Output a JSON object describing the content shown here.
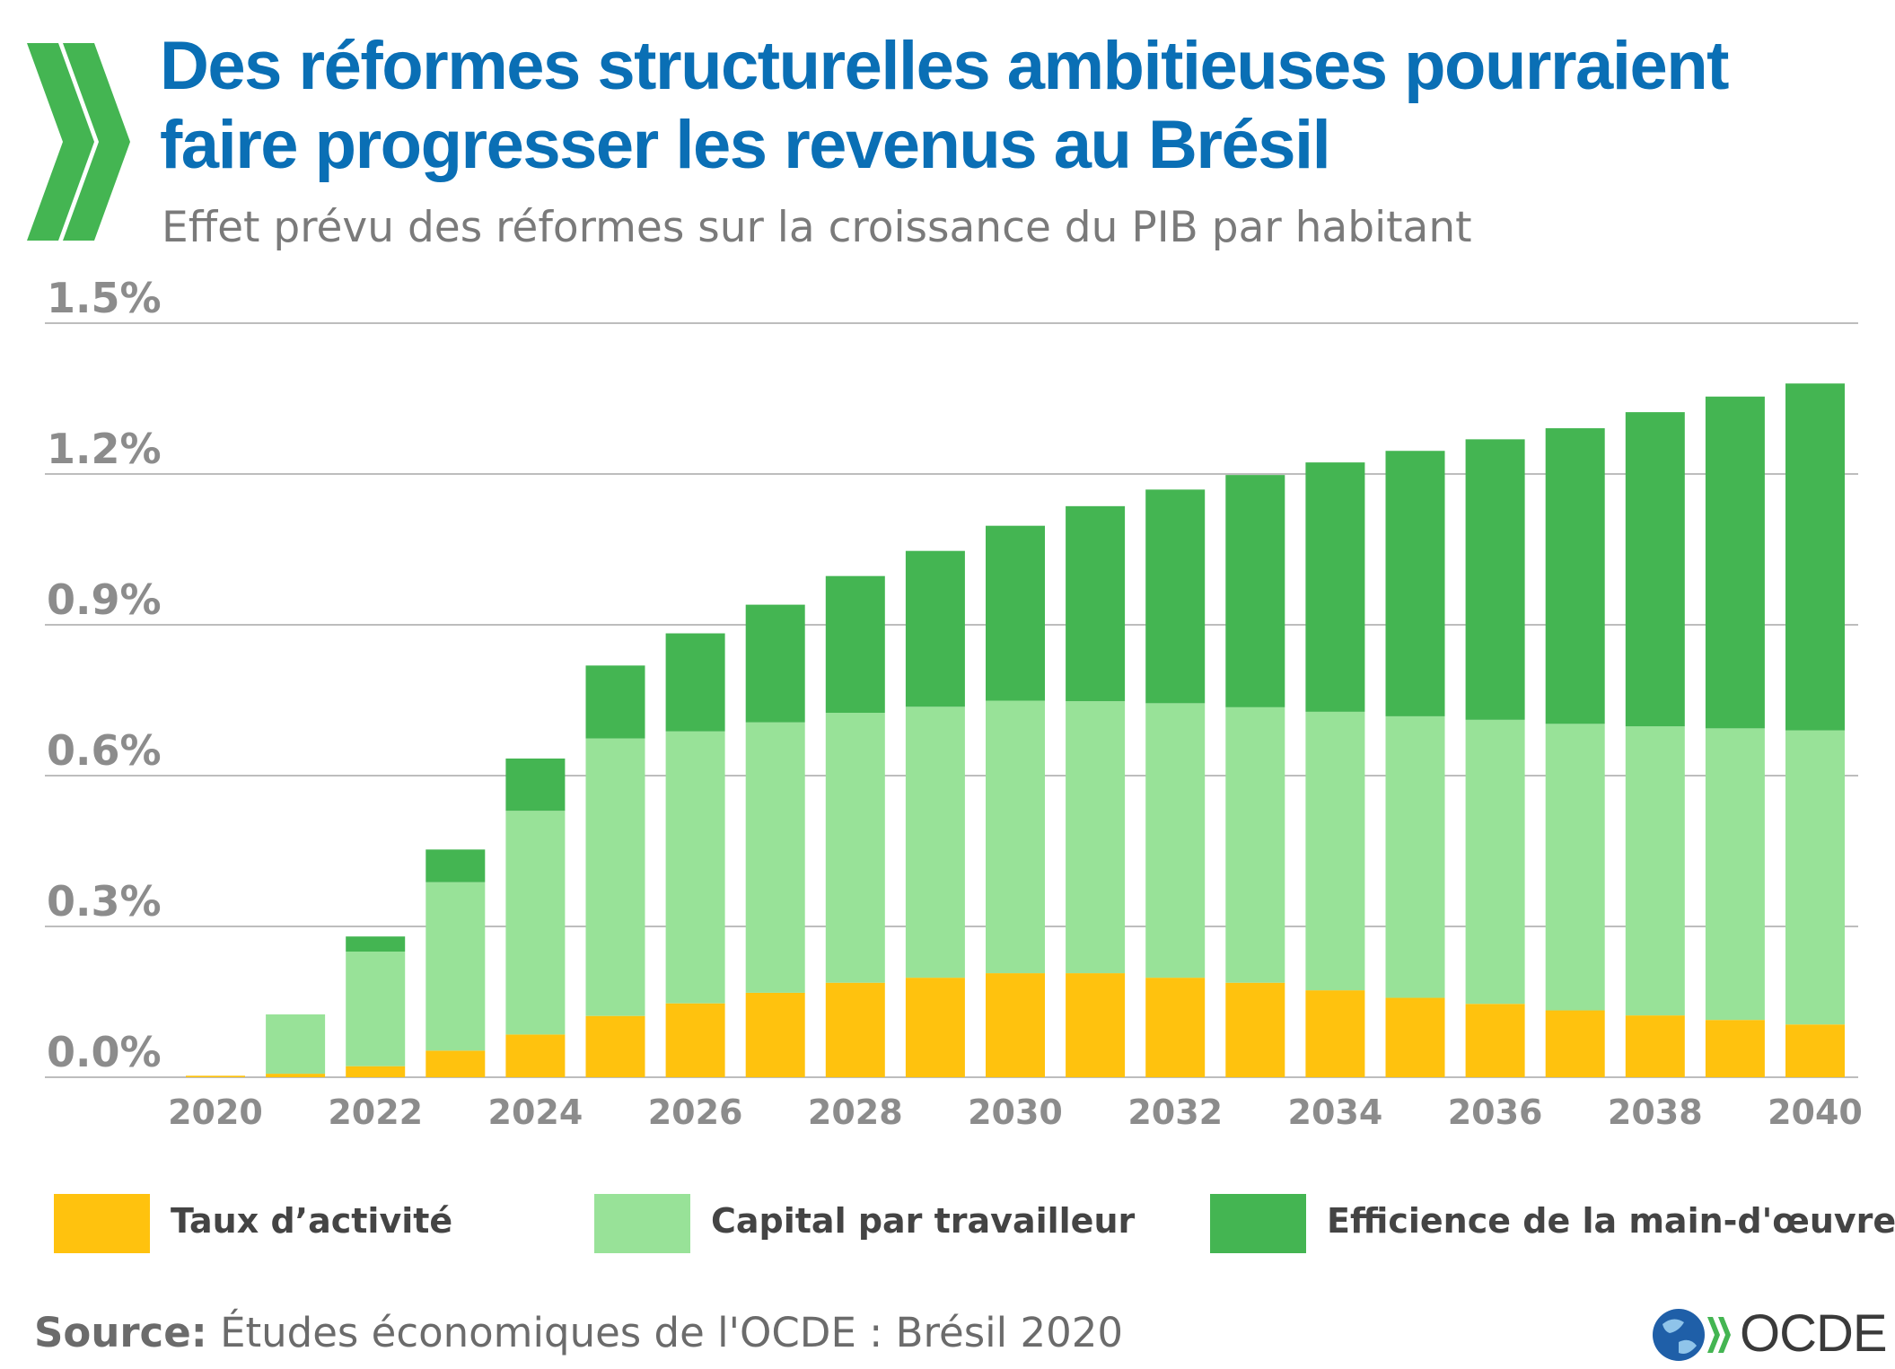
{
  "header": {
    "title": "Des réformes structurelles ambitieuses pourraient faire progresser les revenus au Brésil",
    "subtitle": "Effet prévu des réformes sur la croissance du PIB par habitant"
  },
  "footer": {
    "source_label": "Source:",
    "source_text": "Études économiques de l'OCDE : Brésil 2020",
    "logo_text": "OCDE"
  },
  "colors": {
    "title": "#0a6fb5",
    "taux": "#ffc20e",
    "capital": "#98e298",
    "efficience": "#44b552",
    "grid": "#bdbdbd",
    "tick": "#8c8c8c"
  },
  "chart_data": {
    "type": "bar",
    "stacked": true,
    "title": "Des réformes structurelles ambitieuses pourraient faire progresser les revenus au Brésil",
    "subtitle": "Effet prévu des réformes sur la croissance du PIB par habitant",
    "categories": [
      "2020",
      "2021",
      "2022",
      "2023",
      "2024",
      "2025",
      "2026",
      "2027",
      "2028",
      "2029",
      "2030",
      "2031",
      "2032",
      "2033",
      "2034",
      "2035",
      "2036",
      "2037",
      "2038",
      "2039",
      "2040"
    ],
    "x_tick_labels": [
      "2020",
      "2022",
      "2024",
      "2026",
      "2028",
      "2030",
      "2032",
      "2034",
      "2036",
      "2038",
      "2040"
    ],
    "y_tick_labels": [
      "0.0%",
      "0.3%",
      "0.6%",
      "0.9%",
      "1.2%",
      "1.5%"
    ],
    "ylim": [
      0,
      1.5
    ],
    "grid": true,
    "legend_position": "bottom",
    "series": [
      {
        "name": "Taux d’activité",
        "color": "#ffc20e",
        "values": [
          0.003,
          0.007,
          0.022,
          0.053,
          0.085,
          0.122,
          0.147,
          0.168,
          0.188,
          0.198,
          0.207,
          0.207,
          0.198,
          0.188,
          0.173,
          0.158,
          0.146,
          0.133,
          0.123,
          0.114,
          0.105
        ]
      },
      {
        "name": "Capital par travailleur",
        "color": "#98e298",
        "values": [
          0.0,
          0.118,
          0.228,
          0.335,
          0.445,
          0.552,
          0.541,
          0.538,
          0.537,
          0.539,
          0.542,
          0.541,
          0.546,
          0.548,
          0.554,
          0.56,
          0.565,
          0.57,
          0.575,
          0.58,
          0.585
        ]
      },
      {
        "name": "Efficience de la main-d'œuvre",
        "color": "#44b552",
        "values": [
          0.0,
          0.0,
          0.03,
          0.065,
          0.104,
          0.145,
          0.195,
          0.234,
          0.272,
          0.31,
          0.348,
          0.388,
          0.425,
          0.462,
          0.496,
          0.528,
          0.558,
          0.588,
          0.625,
          0.66,
          0.69
        ]
      }
    ]
  }
}
